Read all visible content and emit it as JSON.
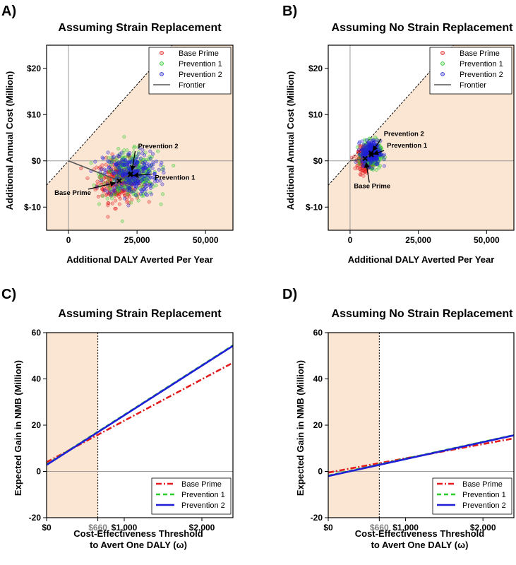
{
  "colors": {
    "shade": "#fbe5d3",
    "base_prime": "#e41a1c",
    "prevention_1": "#2ecc2e",
    "prevention_2": "#1f1fd6",
    "frontier": "#555555",
    "threshold_tick": "#808080"
  },
  "chart_data": [
    {
      "panel": "A)",
      "type": "scatter",
      "title": "Assuming Strain Replacement",
      "xlabel": "Additional DALY Averted Per Year",
      "ylabel": "Additional Annual Cost (Million)",
      "xlim": [
        -8000,
        60000
      ],
      "ylim": [
        -15,
        25
      ],
      "x_ticks": [
        {
          "v": 0,
          "label": "0"
        },
        {
          "v": 25000,
          "label": "25,000"
        },
        {
          "v": 50000,
          "label": "50,000"
        }
      ],
      "y_ticks": [
        {
          "v": 20,
          "label": "$20"
        },
        {
          "v": 10,
          "label": "$10"
        },
        {
          "v": 0,
          "label": "$0"
        },
        {
          "v": -10,
          "label": "$-10"
        }
      ],
      "shaded_region": "below the dashed line through the origin",
      "legend": {
        "position": "top-right",
        "entries": [
          "Base Prime",
          "Prevention 1",
          "Prevention 2",
          "Frontier"
        ]
      },
      "series": [
        {
          "name": "Base Prime",
          "mean": [
            18500,
            -4.3
          ],
          "spread": [
            4000,
            2.3
          ]
        },
        {
          "name": "Prevention 1",
          "mean": [
            22500,
            -3.0
          ],
          "spread": [
            5000,
            2.5
          ]
        },
        {
          "name": "Prevention 2",
          "mean": [
            22800,
            -2.8
          ],
          "spread": [
            5000,
            2.4
          ]
        }
      ],
      "frontier": [
        [
          0,
          0
        ],
        [
          18500,
          -4.3
        ],
        [
          22800,
          -2.8
        ]
      ],
      "annotations": [
        {
          "text": "Prevention 2",
          "target": [
            22800,
            -2.8
          ]
        },
        {
          "text": "Prevention 1",
          "target": [
            22500,
            -3.0
          ]
        },
        {
          "text": "Base Prime",
          "target": [
            18500,
            -4.3
          ]
        }
      ]
    },
    {
      "panel": "B)",
      "type": "scatter",
      "title": "Assuming No Strain Replacement",
      "xlabel": "Additional DALY Averted Per Year",
      "ylabel": "Additional Annual Cost (Million)",
      "xlim": [
        -8000,
        60000
      ],
      "ylim": [
        -15,
        25
      ],
      "x_ticks": [
        {
          "v": 0,
          "label": "0"
        },
        {
          "v": 25000,
          "label": "25,000"
        },
        {
          "v": 50000,
          "label": "50,000"
        }
      ],
      "y_ticks": [
        {
          "v": 20,
          "label": "$20"
        },
        {
          "v": 10,
          "label": "$10"
        },
        {
          "v": 0,
          "label": "$0"
        },
        {
          "v": -10,
          "label": "$-10"
        }
      ],
      "shaded_region": "below the dashed line through the origin",
      "legend": {
        "position": "top-right",
        "entries": [
          "Base Prime",
          "Prevention 1",
          "Prevention 2",
          "Frontier"
        ]
      },
      "series": [
        {
          "name": "Base Prime",
          "mean": [
            5500,
            0.5
          ],
          "spread": [
            1300,
            1.2
          ]
        },
        {
          "name": "Prevention 1",
          "mean": [
            7800,
            1.3
          ],
          "spread": [
            1700,
            1.3
          ]
        },
        {
          "name": "Prevention 2",
          "mean": [
            7700,
            1.7
          ],
          "spread": [
            1700,
            1.3
          ]
        }
      ],
      "frontier": [
        [
          0,
          0
        ],
        [
          5500,
          0.5
        ],
        [
          7700,
          1.7
        ]
      ],
      "annotations": [
        {
          "text": "Prevention 2",
          "target": [
            7700,
            1.7
          ]
        },
        {
          "text": "Prevention 1",
          "target": [
            7800,
            1.3
          ]
        },
        {
          "text": "Base Prime",
          "target": [
            5500,
            0.5
          ]
        }
      ]
    },
    {
      "panel": "C)",
      "type": "line",
      "title": "Assuming Strain Replacement",
      "xlabel_lines": [
        "Cost-Effectiveness Threshold",
        "to Avert One DALY (ω)"
      ],
      "ylabel": "Expected Gain in NMB (Million)",
      "xlim": [
        0,
        2400
      ],
      "ylim": [
        -20,
        60
      ],
      "threshold": {
        "v": 660,
        "label": "$660"
      },
      "x_ticks": [
        {
          "v": 0,
          "label": "$0"
        },
        {
          "v": 1000,
          "label": "$1,000"
        },
        {
          "v": 2000,
          "label": "$2,000"
        }
      ],
      "y_ticks": [
        {
          "v": 60,
          "label": "60"
        },
        {
          "v": 40,
          "label": "40"
        },
        {
          "v": 20,
          "label": "20"
        },
        {
          "v": 0,
          "label": "0"
        },
        {
          "v": -20,
          "label": "-20"
        }
      ],
      "legend": {
        "position": "bottom-right",
        "entries": [
          "Base Prime",
          "Prevention 1",
          "Prevention 2"
        ]
      },
      "series": [
        {
          "name": "Base Prime",
          "x": [
            0,
            2400
          ],
          "y": [
            4.0,
            47.0
          ]
        },
        {
          "name": "Prevention 1",
          "x": [
            0,
            2400
          ],
          "y": [
            3.0,
            54.5
          ]
        },
        {
          "name": "Prevention 2",
          "x": [
            0,
            2400
          ],
          "y": [
            2.8,
            54.3
          ]
        }
      ]
    },
    {
      "panel": "D)",
      "type": "line",
      "title": "Assuming No Strain Replacement",
      "xlabel_lines": [
        "Cost-Effectiveness Threshold",
        "to Avert One DALY (ω)"
      ],
      "ylabel": "Expected Gain in NMB (Million)",
      "xlim": [
        0,
        2400
      ],
      "ylim": [
        -20,
        60
      ],
      "threshold": {
        "v": 660,
        "label": "$660"
      },
      "x_ticks": [
        {
          "v": 0,
          "label": "$0"
        },
        {
          "v": 1000,
          "label": "$1,000"
        },
        {
          "v": 2000,
          "label": "$2,000"
        }
      ],
      "y_ticks": [
        {
          "v": 60,
          "label": "60"
        },
        {
          "v": 40,
          "label": "40"
        },
        {
          "v": 20,
          "label": "20"
        },
        {
          "v": 0,
          "label": "0"
        },
        {
          "v": -20,
          "label": "-20"
        }
      ],
      "legend": {
        "position": "bottom-right",
        "entries": [
          "Base Prime",
          "Prevention 1",
          "Prevention 2"
        ]
      },
      "series": [
        {
          "name": "Base Prime",
          "x": [
            0,
            2400
          ],
          "y": [
            -0.5,
            14.3
          ]
        },
        {
          "name": "Prevention 1",
          "x": [
            0,
            2400
          ],
          "y": [
            -1.8,
            15.7
          ]
        },
        {
          "name": "Prevention 2",
          "x": [
            0,
            2400
          ],
          "y": [
            -2.0,
            15.6
          ]
        }
      ]
    }
  ]
}
